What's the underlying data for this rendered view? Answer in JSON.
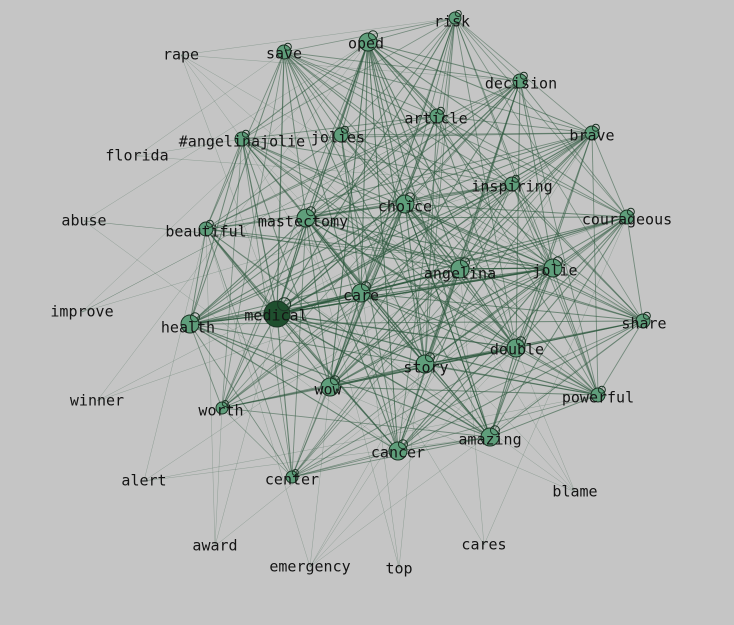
{
  "colors": {
    "background": "#c5c5c5",
    "edge": "#2f5a40",
    "node_fill": "#5f9e7b",
    "node_fill_dark": "#1f4f2e",
    "node_stroke": "#1b3324",
    "label": "#141414"
  },
  "graph": {
    "nodes": [
      {
        "id": "risk",
        "label": "risk",
        "degree": 1
      },
      {
        "id": "rape",
        "label": "rape",
        "degree": 0
      },
      {
        "id": "save",
        "label": "save",
        "degree": 2
      },
      {
        "id": "oped",
        "label": "oped",
        "degree": 3
      },
      {
        "id": "decision",
        "label": "decision",
        "degree": 2
      },
      {
        "id": "article",
        "label": "article",
        "degree": 2
      },
      {
        "id": "brave",
        "label": "brave",
        "degree": 2
      },
      {
        "id": "angelinajolie_tag",
        "label": "#angelinajolie",
        "degree": 2
      },
      {
        "id": "jolies",
        "label": "jolies",
        "degree": 2
      },
      {
        "id": "florida",
        "label": "florida",
        "degree": 0
      },
      {
        "id": "inspiring",
        "label": "inspiring",
        "degree": 2
      },
      {
        "id": "choice",
        "label": "choice",
        "degree": 3
      },
      {
        "id": "abuse",
        "label": "abuse",
        "degree": 0
      },
      {
        "id": "mastectomy",
        "label": "mastectomy",
        "degree": 3
      },
      {
        "id": "courageous",
        "label": "courageous",
        "degree": 2
      },
      {
        "id": "beautiful",
        "label": "beautiful",
        "degree": 2
      },
      {
        "id": "angelina",
        "label": "angelina",
        "degree": 3
      },
      {
        "id": "jolie",
        "label": "jolie",
        "degree": 3
      },
      {
        "id": "care",
        "label": "care",
        "degree": 3
      },
      {
        "id": "improve",
        "label": "improve",
        "degree": 0
      },
      {
        "id": "medical",
        "label": "medical",
        "degree": 5
      },
      {
        "id": "health",
        "label": "health",
        "degree": 3
      },
      {
        "id": "share",
        "label": "share",
        "degree": 2
      },
      {
        "id": "double",
        "label": "double",
        "degree": 3
      },
      {
        "id": "story",
        "label": "story",
        "degree": 3
      },
      {
        "id": "wow",
        "label": "wow",
        "degree": 3
      },
      {
        "id": "winner",
        "label": "winner",
        "degree": 0
      },
      {
        "id": "powerful",
        "label": "powerful",
        "degree": 2
      },
      {
        "id": "worth",
        "label": "worth",
        "degree": 1
      },
      {
        "id": "amazing",
        "label": "amazing",
        "degree": 3
      },
      {
        "id": "cancer",
        "label": "cancer",
        "degree": 3
      },
      {
        "id": "alert",
        "label": "alert",
        "degree": 0
      },
      {
        "id": "center",
        "label": "center",
        "degree": 1
      },
      {
        "id": "blame",
        "label": "blame",
        "degree": 0
      },
      {
        "id": "award",
        "label": "award",
        "degree": 0
      },
      {
        "id": "cares",
        "label": "cares",
        "degree": 0
      },
      {
        "id": "emergency",
        "label": "emergency",
        "degree": 0
      },
      {
        "id": "top",
        "label": "top",
        "degree": 0
      }
    ]
  }
}
